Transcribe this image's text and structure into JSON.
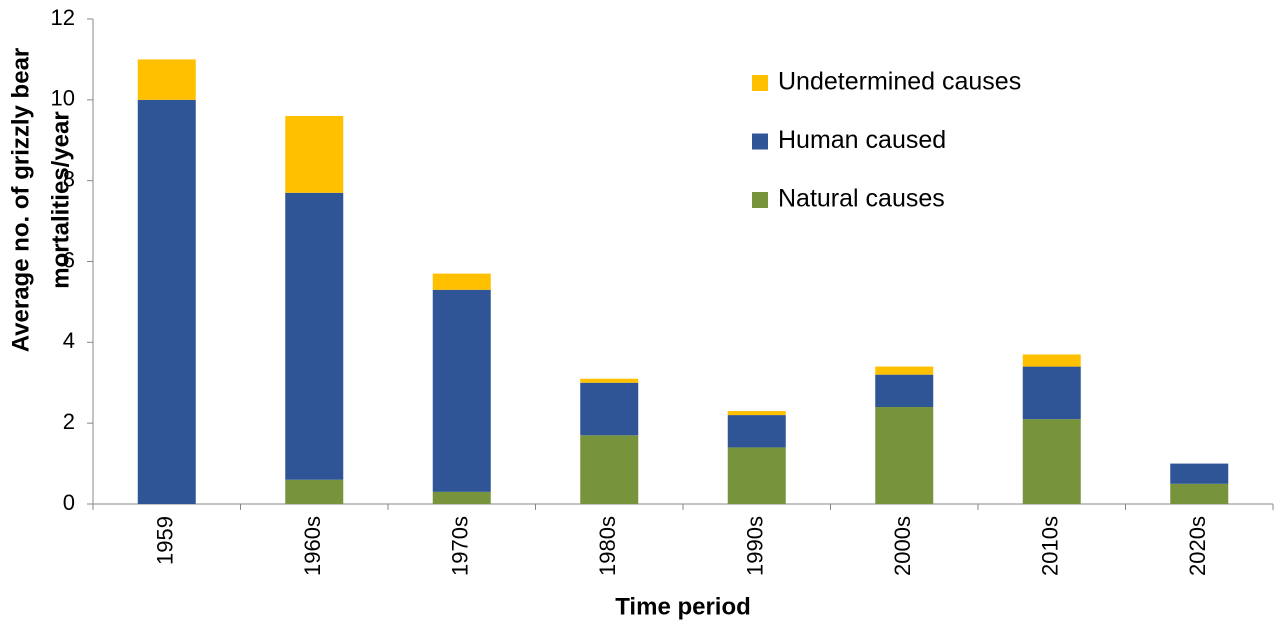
{
  "chart_data": {
    "type": "stacked_bar",
    "x_label": "Time period",
    "y_label": [
      "Average no. of grizzly bear",
      "mortalities/year"
    ],
    "categories": [
      "1959",
      "1960s",
      "1970s",
      "1980s",
      "1990s",
      "2000s",
      "2010s",
      "2020s"
    ],
    "series": [
      {
        "name": "Natural causes",
        "color": "#77933c",
        "values": [
          0,
          0.6,
          0.3,
          1.7,
          1.4,
          2.4,
          2.1,
          0.5
        ]
      },
      {
        "name": "Human caused",
        "color": "#2f5597",
        "values": [
          10,
          7.1,
          5.0,
          1.3,
          0.8,
          0.8,
          1.3,
          0.5
        ]
      },
      {
        "name": "Undetermined causes",
        "color": "#ffc000",
        "values": [
          1,
          1.9,
          0.4,
          0.1,
          0.1,
          0.2,
          0.3,
          0
        ]
      }
    ],
    "ylim": [
      0,
      12
    ],
    "yticks": [
      0,
      2,
      4,
      6,
      8,
      10,
      12
    ],
    "grid": false,
    "legend": "upper right"
  }
}
